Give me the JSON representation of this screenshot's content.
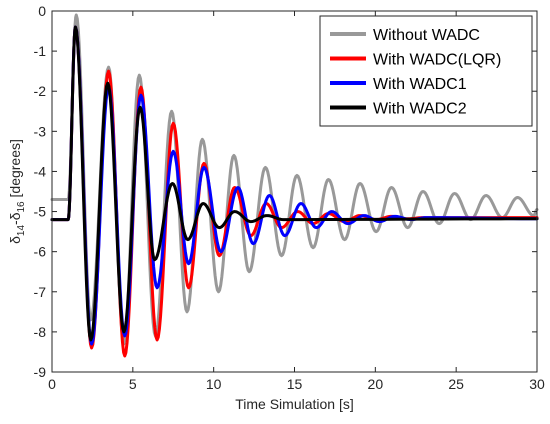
{
  "chart_data": {
    "type": "line",
    "xlabel": "Time Simulation [s]",
    "ylabel": {
      "parts": [
        "δ",
        "14",
        "-δ",
        "16",
        " [degrees]"
      ]
    },
    "xlim": [
      0,
      30
    ],
    "ylim": [
      -9,
      0
    ],
    "xticks": [
      "0",
      "5",
      "10",
      "15",
      "20",
      "25",
      "30"
    ],
    "yticks": [
      "0",
      "-1",
      "-2",
      "-3",
      "-4",
      "-5",
      "-6",
      "-7",
      "-8",
      "-9"
    ],
    "grid": false,
    "legend_position": "top-right",
    "series": [
      {
        "name": "Without WADC",
        "color": "#999999",
        "initial": -4.7,
        "t0": 1.0,
        "peaks": [
          [
            1.0,
            -4.7
          ],
          [
            1.5,
            -0.1
          ],
          [
            2.4,
            -7.7
          ],
          [
            3.5,
            -1.4
          ],
          [
            4.45,
            -8.3
          ],
          [
            5.4,
            -1.6
          ],
          [
            6.4,
            -8.1
          ],
          [
            7.4,
            -2.5
          ],
          [
            8.35,
            -7.5
          ],
          [
            9.3,
            -3.2
          ],
          [
            10.3,
            -7.0
          ],
          [
            11.25,
            -3.6
          ],
          [
            12.2,
            -6.5
          ],
          [
            13.2,
            -3.9
          ],
          [
            14.2,
            -6.1
          ],
          [
            15.15,
            -4.1
          ],
          [
            16.15,
            -5.9
          ],
          [
            17.1,
            -4.2
          ],
          [
            18.1,
            -5.7
          ],
          [
            19.05,
            -4.3
          ],
          [
            20.05,
            -5.5
          ],
          [
            21.0,
            -4.4
          ],
          [
            22.0,
            -5.4
          ],
          [
            22.95,
            -4.5
          ],
          [
            23.95,
            -5.3
          ],
          [
            24.9,
            -4.55
          ],
          [
            25.9,
            -5.2
          ],
          [
            26.85,
            -4.6
          ],
          [
            27.85,
            -5.15
          ],
          [
            28.8,
            -4.65
          ],
          [
            29.8,
            -5.1
          ],
          [
            30.0,
            -4.95
          ]
        ]
      },
      {
        "name": "With WADC(LQR)",
        "color": "#ff0000",
        "initial": -5.2,
        "t0": 1.0,
        "peaks": [
          [
            1.0,
            -5.2
          ],
          [
            1.45,
            -0.4
          ],
          [
            2.45,
            -8.4
          ],
          [
            3.5,
            -1.5
          ],
          [
            4.5,
            -8.6
          ],
          [
            5.5,
            -1.9
          ],
          [
            6.5,
            -8.2
          ],
          [
            7.5,
            -2.8
          ],
          [
            8.45,
            -6.9
          ],
          [
            9.4,
            -3.8
          ],
          [
            10.35,
            -6.1
          ],
          [
            11.3,
            -4.4
          ],
          [
            12.3,
            -5.6
          ],
          [
            13.25,
            -4.8
          ],
          [
            14.2,
            -5.4
          ],
          [
            15.2,
            -5.0
          ],
          [
            16.15,
            -5.3
          ],
          [
            17.1,
            -5.05
          ],
          [
            18.1,
            -5.25
          ],
          [
            19.05,
            -5.1
          ],
          [
            20.05,
            -5.2
          ],
          [
            21.0,
            -5.12
          ],
          [
            22.0,
            -5.18
          ],
          [
            23.0,
            -5.15
          ],
          [
            30.0,
            -5.15
          ]
        ]
      },
      {
        "name": "With WADC1",
        "color": "#0000ff",
        "initial": -5.2,
        "t0": 1.0,
        "peaks": [
          [
            1.0,
            -5.2
          ],
          [
            1.45,
            -0.4
          ],
          [
            2.45,
            -8.3
          ],
          [
            3.5,
            -1.9
          ],
          [
            4.5,
            -8.1
          ],
          [
            5.5,
            -2.1
          ],
          [
            6.5,
            -6.9
          ],
          [
            7.5,
            -3.5
          ],
          [
            8.45,
            -6.3
          ],
          [
            9.4,
            -3.9
          ],
          [
            10.45,
            -6.0
          ],
          [
            11.5,
            -4.4
          ],
          [
            12.45,
            -5.8
          ],
          [
            13.45,
            -4.6
          ],
          [
            14.4,
            -5.6
          ],
          [
            15.4,
            -4.8
          ],
          [
            16.35,
            -5.4
          ],
          [
            17.3,
            -5.0
          ],
          [
            18.3,
            -5.3
          ],
          [
            19.3,
            -5.1
          ],
          [
            20.25,
            -5.25
          ],
          [
            21.2,
            -5.12
          ],
          [
            22.2,
            -5.2
          ],
          [
            23.2,
            -5.15
          ],
          [
            30.0,
            -5.18
          ]
        ]
      },
      {
        "name": "With WADC2",
        "color": "#000000",
        "initial": -5.2,
        "t0": 1.0,
        "peaks": [
          [
            1.0,
            -5.2
          ],
          [
            1.45,
            -0.4
          ],
          [
            2.4,
            -8.2
          ],
          [
            3.45,
            -1.8
          ],
          [
            4.45,
            -8.0
          ],
          [
            5.45,
            -2.4
          ],
          [
            6.35,
            -6.2
          ],
          [
            7.45,
            -4.3
          ],
          [
            8.4,
            -5.7
          ],
          [
            9.35,
            -4.8
          ],
          [
            10.35,
            -5.4
          ],
          [
            11.3,
            -5.0
          ],
          [
            12.3,
            -5.25
          ],
          [
            13.3,
            -5.1
          ],
          [
            14.3,
            -5.2
          ],
          [
            30.0,
            -5.18
          ]
        ]
      }
    ]
  }
}
